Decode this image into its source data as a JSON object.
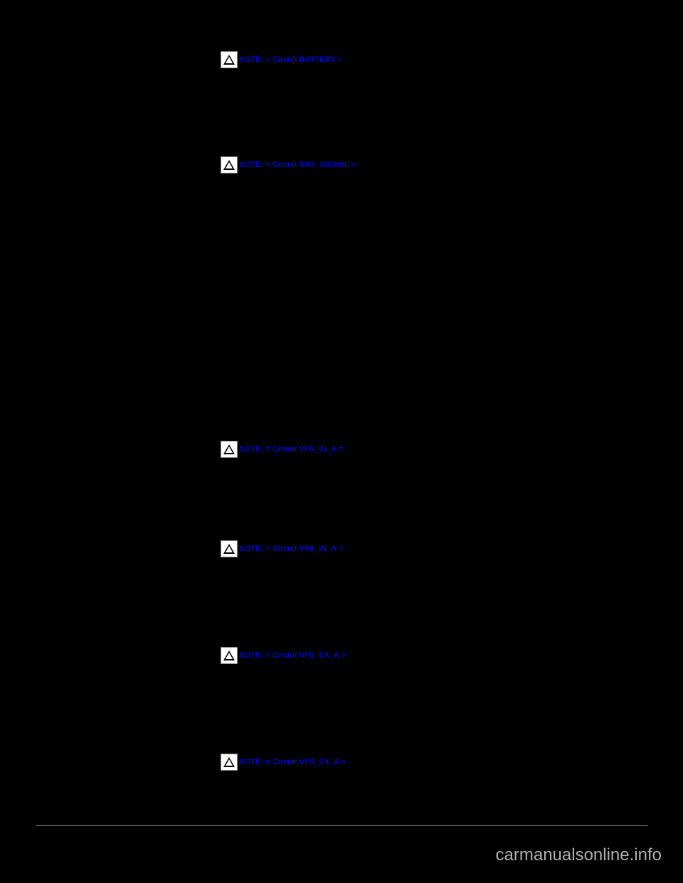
{
  "notes": [
    {
      "label": "NOTE: = Circuit BATTERY ="
    },
    {
      "label": "NOTE: = Circuit SRS_SIGNAL ="
    },
    {
      "label": "NOTE: = Circuit VFS_IN_A ="
    },
    {
      "label": "NOTE: = Circuit VFS_IN_A ="
    },
    {
      "label": "NOTE: = Circuit VFS_EX_A ="
    },
    {
      "label": "NOTE: = Circuit VFS_EX_A ="
    }
  ],
  "watermark": "carmanualsonline.info",
  "colors": {
    "background": "#000000",
    "note_text": "#0000dd",
    "icon_bg": "#ffffff",
    "divider": "#888888",
    "watermark": "#b0b0b0"
  }
}
